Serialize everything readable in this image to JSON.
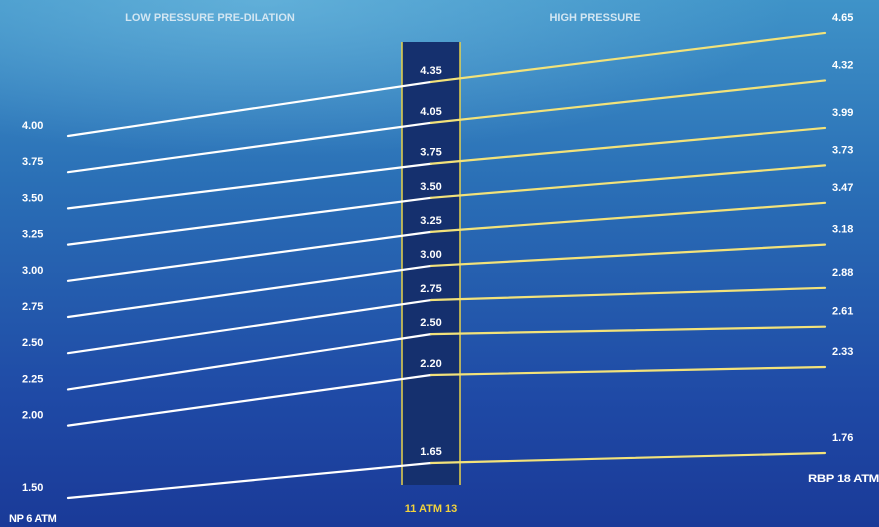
{
  "chart_data": {
    "type": "line",
    "section_labels": [
      "LOW PRESSURE PRE-DILATION",
      "HIGH PRESSURE"
    ],
    "band_label": "11 ATM 13",
    "start_label": "NP 6 ATM",
    "end_label": "RBP 18 ATM",
    "series": [
      {
        "start": "1.50",
        "mid": "1.65",
        "end": "1.76",
        "values": [
          1.5,
          1.65,
          1.76
        ]
      },
      {
        "start": "2.00",
        "mid": "2.20",
        "end": "2.33",
        "values": [
          2.0,
          2.2,
          2.33
        ]
      },
      {
        "start": "2.25",
        "mid": "2.50",
        "end": "2.61",
        "values": [
          2.25,
          2.5,
          2.61
        ]
      },
      {
        "start": "2.50",
        "mid": "2.75",
        "end": "2.88",
        "values": [
          2.5,
          2.75,
          2.88
        ]
      },
      {
        "start": "2.75",
        "mid": "3.00",
        "end": "3.18",
        "values": [
          2.75,
          3.0,
          3.18
        ]
      },
      {
        "start": "3.00",
        "mid": "3.25",
        "end": "3.47",
        "values": [
          3.0,
          3.25,
          3.47
        ]
      },
      {
        "start": "3.25",
        "mid": "3.50",
        "end": "3.73",
        "values": [
          3.25,
          3.5,
          3.73
        ]
      },
      {
        "start": "3.50",
        "mid": "3.75",
        "end": "3.99",
        "values": [
          3.5,
          3.75,
          3.99
        ]
      },
      {
        "start": "3.75",
        "mid": "4.05",
        "end": "4.32",
        "values": [
          3.75,
          4.05,
          4.32
        ]
      },
      {
        "start": "4.00",
        "mid": "4.35",
        "end": "4.65",
        "values": [
          4.0,
          4.35,
          4.65
        ]
      }
    ],
    "colors": {
      "low_pressure_line": "#ffffff",
      "high_pressure_line": "#f2e27a",
      "band_fill": "#15306e",
      "band_border": "#e8d24a",
      "band_label": "#f2d23c"
    }
  }
}
